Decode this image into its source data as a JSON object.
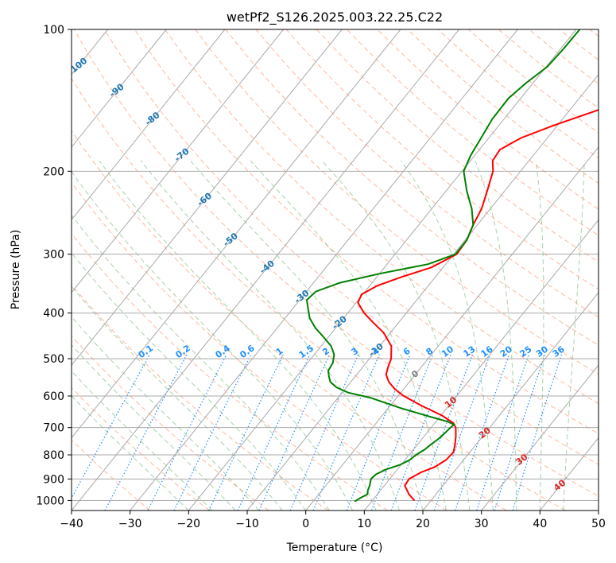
{
  "chart_data": {
    "type": "line",
    "title": "wetPf2_S126.2025.003.22.25.C22",
    "xlabel": "Temperature (°C)",
    "ylabel": "Pressure (hPa)",
    "xlim": [
      -40,
      50
    ],
    "ylim": [
      1050,
      100
    ],
    "y_scale": "log",
    "x_ticks": [
      -40,
      -30,
      -20,
      -10,
      0,
      10,
      20,
      30,
      40,
      50
    ],
    "x_tick_labels": [
      "−40",
      "−30",
      "−20",
      "−10",
      "0",
      "10",
      "20",
      "30",
      "40",
      "50"
    ],
    "y_ticks": [
      1000,
      900,
      800,
      700,
      600,
      500,
      400,
      300,
      200,
      100
    ],
    "y_tick_labels": [
      "1000",
      "900",
      "800",
      "700",
      "600",
      "500",
      "400",
      "300",
      "200",
      "100"
    ],
    "grid": true,
    "colors": {
      "temperature": "#ff0000",
      "dewpoint": "#008000",
      "isotherm": "#a9a9a9",
      "dry_adiabat": "#ffa07a",
      "moist_adiabat": "#90c890",
      "mixing_ratio": "#1e90ff",
      "isotherm_label": "#1f77b4",
      "warm_isotherm_label": "#d62728",
      "zero_isotherm_label": "#808080",
      "background_curve": "#d2b48c"
    },
    "isotherm_labels": [
      {
        "text": "-100",
        "t": -100,
        "p": 120
      },
      {
        "text": "-90",
        "t": -90,
        "p": 135
      },
      {
        "text": "-80",
        "t": -80,
        "p": 155
      },
      {
        "text": "-70",
        "t": -70,
        "p": 185
      },
      {
        "text": "-60",
        "t": -60,
        "p": 230
      },
      {
        "text": "-50",
        "t": -50,
        "p": 280
      },
      {
        "text": "-40",
        "t": -40,
        "p": 320
      },
      {
        "text": "-30",
        "t": -30,
        "p": 370
      },
      {
        "text": "-20",
        "t": -20,
        "p": 420
      },
      {
        "text": "-10",
        "t": -10,
        "p": 480
      },
      {
        "text": "0",
        "t": 0,
        "p": 540
      },
      {
        "text": "10",
        "t": 10,
        "p": 620
      },
      {
        "text": "20",
        "t": 20,
        "p": 720
      },
      {
        "text": "30",
        "t": 30,
        "p": 820
      },
      {
        "text": "40",
        "t": 40,
        "p": 930
      }
    ],
    "mixing_ratio_labels": [
      {
        "text": "0.1",
        "w": 0.1
      },
      {
        "text": "0.2",
        "w": 0.2
      },
      {
        "text": "0.4",
        "w": 0.4
      },
      {
        "text": "0.6",
        "w": 0.6
      },
      {
        "text": "1",
        "w": 1
      },
      {
        "text": "1.5",
        "w": 1.5
      },
      {
        "text": "2",
        "w": 2
      },
      {
        "text": "3",
        "w": 3
      },
      {
        "text": "4",
        "w": 4
      },
      {
        "text": "6",
        "w": 6
      },
      {
        "text": "8",
        "w": 8
      },
      {
        "text": "10",
        "w": 10
      },
      {
        "text": "13",
        "w": 13
      },
      {
        "text": "16",
        "w": 16
      },
      {
        "text": "20",
        "w": 20
      },
      {
        "text": "25",
        "w": 25
      },
      {
        "text": "30",
        "w": 30
      },
      {
        "text": "36",
        "w": 36
      }
    ],
    "series": [
      {
        "name": "temperature",
        "points": [
          {
            "p": 1000,
            "t": 17.2
          },
          {
            "p": 970,
            "t": 15.4
          },
          {
            "p": 930,
            "t": 13.5
          },
          {
            "p": 900,
            "t": 13.3
          },
          {
            "p": 870,
            "t": 14.5
          },
          {
            "p": 850,
            "t": 16.0
          },
          {
            "p": 820,
            "t": 17.0
          },
          {
            "p": 790,
            "t": 17.2
          },
          {
            "p": 760,
            "t": 16.4
          },
          {
            "p": 730,
            "t": 15.4
          },
          {
            "p": 700,
            "t": 14.2
          },
          {
            "p": 685,
            "t": 13.2
          },
          {
            "p": 660,
            "t": 10.2
          },
          {
            "p": 630,
            "t": 5.5
          },
          {
            "p": 600,
            "t": 1.0
          },
          {
            "p": 580,
            "t": -1.5
          },
          {
            "p": 560,
            "t": -3.5
          },
          {
            "p": 540,
            "t": -5.0
          },
          {
            "p": 520,
            "t": -5.7
          },
          {
            "p": 500,
            "t": -6.3
          },
          {
            "p": 470,
            "t": -8.0
          },
          {
            "p": 440,
            "t": -11.2
          },
          {
            "p": 420,
            "t": -14.2
          },
          {
            "p": 400,
            "t": -17.2
          },
          {
            "p": 380,
            "t": -19.7
          },
          {
            "p": 365,
            "t": -20.2
          },
          {
            "p": 350,
            "t": -18.7
          },
          {
            "p": 335,
            "t": -15.7
          },
          {
            "p": 320,
            "t": -12.0
          },
          {
            "p": 300,
            "t": -9.5
          },
          {
            "p": 280,
            "t": -9.7
          },
          {
            "p": 260,
            "t": -10.7
          },
          {
            "p": 240,
            "t": -11.5
          },
          {
            "p": 220,
            "t": -13.0
          },
          {
            "p": 200,
            "t": -14.7
          },
          {
            "p": 190,
            "t": -16.2
          },
          {
            "p": 180,
            "t": -16.5
          },
          {
            "p": 170,
            "t": -14.5
          },
          {
            "p": 160,
            "t": -10.7
          },
          {
            "p": 150,
            "t": -6.0
          },
          {
            "p": 140,
            "t": -1.0
          },
          {
            "p": 130,
            "t": 4.2
          },
          {
            "p": 120,
            "t": 7.6
          },
          {
            "p": 110,
            "t": 9.6
          },
          {
            "p": 100,
            "t": 11.4
          }
        ]
      },
      {
        "name": "dewpoint",
        "points": [
          {
            "p": 1005,
            "t": 7.1
          },
          {
            "p": 990,
            "t": 7.5
          },
          {
            "p": 970,
            "t": 8.3
          },
          {
            "p": 950,
            "t": 7.8
          },
          {
            "p": 930,
            "t": 7.5
          },
          {
            "p": 900,
            "t": 6.8
          },
          {
            "p": 880,
            "t": 7.0
          },
          {
            "p": 860,
            "t": 8.0
          },
          {
            "p": 840,
            "t": 9.8
          },
          {
            "p": 820,
            "t": 10.8
          },
          {
            "p": 800,
            "t": 11.2
          },
          {
            "p": 780,
            "t": 11.9
          },
          {
            "p": 760,
            "t": 12.3
          },
          {
            "p": 740,
            "t": 12.8
          },
          {
            "p": 720,
            "t": 13.1
          },
          {
            "p": 700,
            "t": 13.3
          },
          {
            "p": 690,
            "t": 13.5
          },
          {
            "p": 680,
            "t": 12.0
          },
          {
            "p": 665,
            "t": 8.6
          },
          {
            "p": 650,
            "t": 5.2
          },
          {
            "p": 635,
            "t": 1.8
          },
          {
            "p": 620,
            "t": -1.3
          },
          {
            "p": 605,
            "t": -4.5
          },
          {
            "p": 590,
            "t": -9.0
          },
          {
            "p": 575,
            "t": -11.7
          },
          {
            "p": 560,
            "t": -13.5
          },
          {
            "p": 545,
            "t": -14.5
          },
          {
            "p": 530,
            "t": -15.4
          },
          {
            "p": 510,
            "t": -15.7
          },
          {
            "p": 490,
            "t": -16.6
          },
          {
            "p": 470,
            "t": -18.3
          },
          {
            "p": 450,
            "t": -20.8
          },
          {
            "p": 430,
            "t": -23.5
          },
          {
            "p": 410,
            "t": -25.8
          },
          {
            "p": 390,
            "t": -27.5
          },
          {
            "p": 375,
            "t": -28.8
          },
          {
            "p": 360,
            "t": -28.4
          },
          {
            "p": 345,
            "t": -25.5
          },
          {
            "p": 330,
            "t": -20.0
          },
          {
            "p": 315,
            "t": -13.0
          },
          {
            "p": 300,
            "t": -9.7
          },
          {
            "p": 280,
            "t": -9.7
          },
          {
            "p": 260,
            "t": -10.7
          },
          {
            "p": 240,
            "t": -13.2
          },
          {
            "p": 220,
            "t": -16.5
          },
          {
            "p": 200,
            "t": -19.7
          },
          {
            "p": 185,
            "t": -20.7
          },
          {
            "p": 170,
            "t": -21.3
          },
          {
            "p": 155,
            "t": -22.0
          },
          {
            "p": 140,
            "t": -22.1
          },
          {
            "p": 130,
            "t": -21.2
          },
          {
            "p": 120,
            "t": -19.8
          },
          {
            "p": 110,
            "t": -19.5
          },
          {
            "p": 100,
            "t": -19.4
          }
        ]
      }
    ]
  }
}
